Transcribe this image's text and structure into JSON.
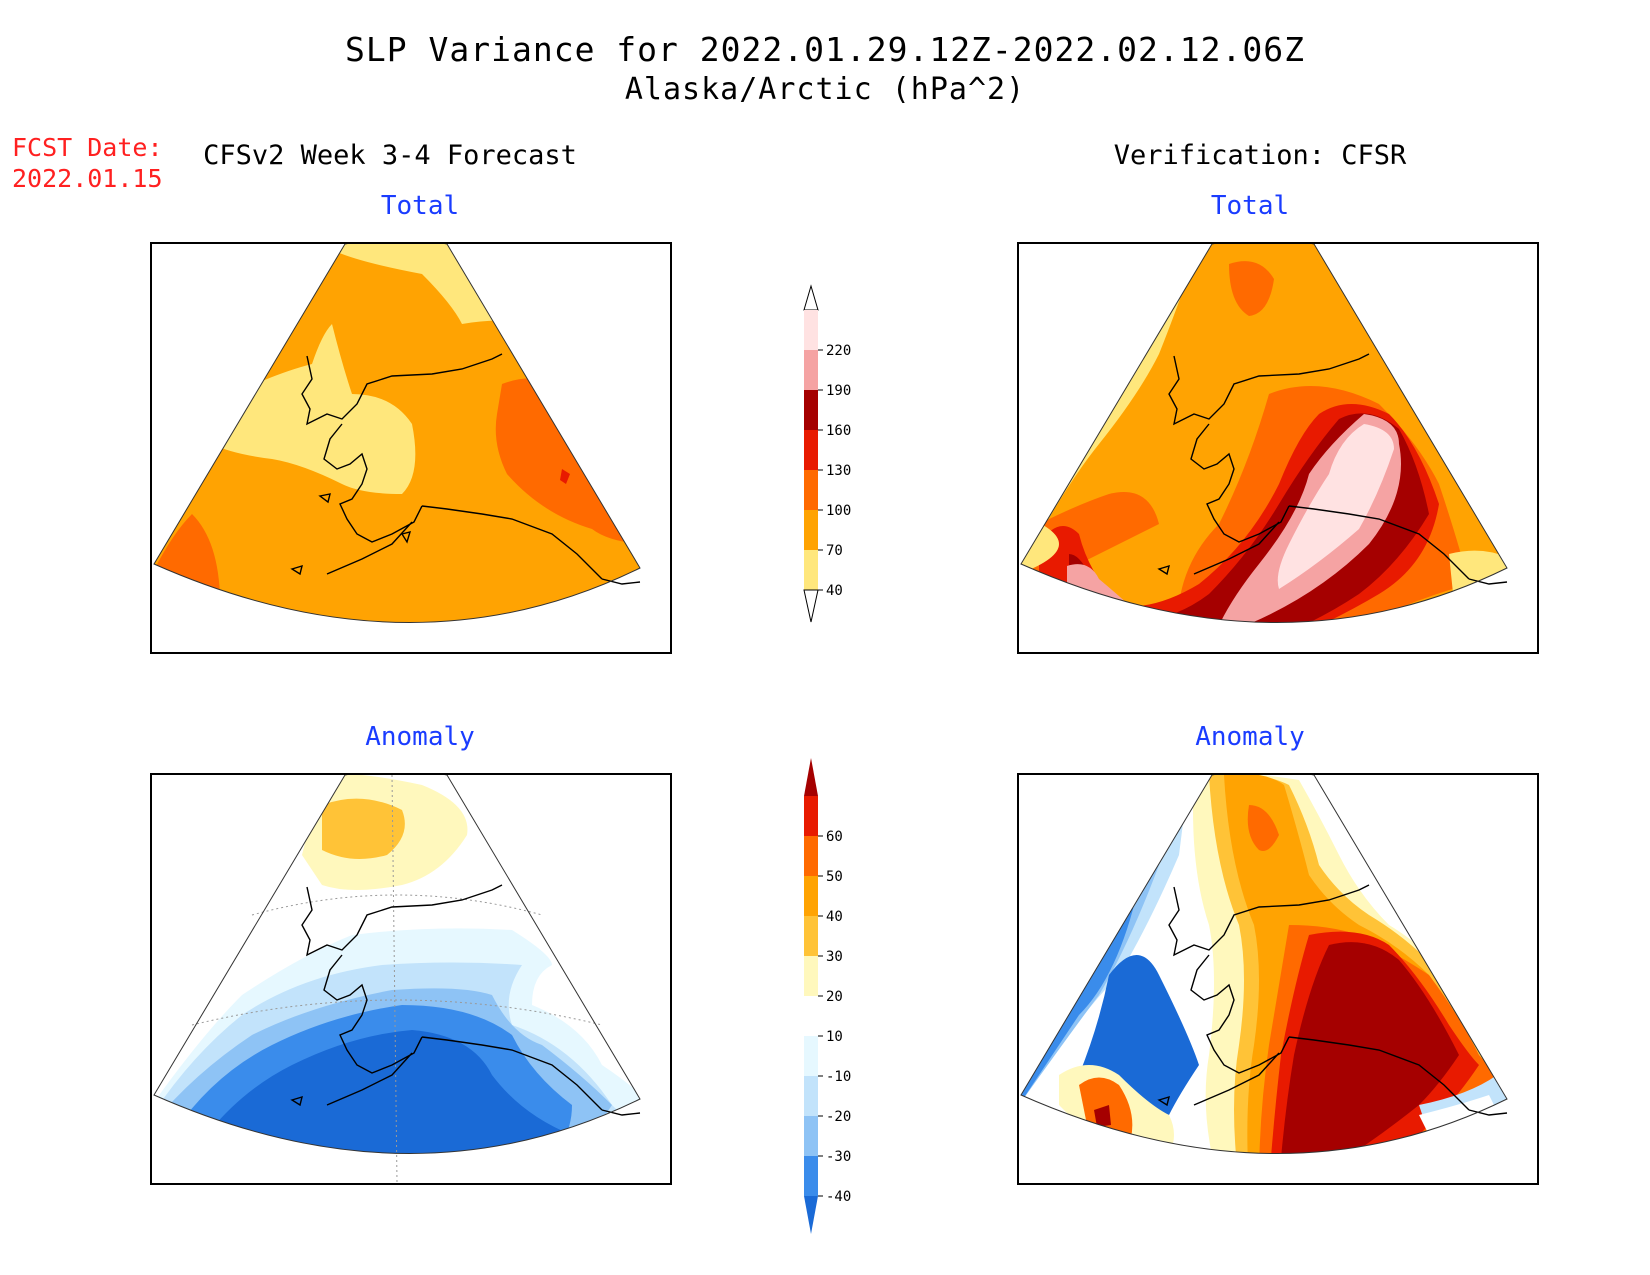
{
  "title": {
    "line1": "SLP Variance for 2022.01.29.12Z-2022.02.12.06Z",
    "line2": "Alaska/Arctic (hPa^2)"
  },
  "forecast_date": {
    "label": "FCST Date:",
    "value": "2022.01.15"
  },
  "columns": {
    "left": "CFSv2 Week 3-4 Forecast",
    "right": "Verification: CFSR"
  },
  "panels": {
    "forecast_total": "Total",
    "verification_total": "Total",
    "forecast_anomaly": "Anomaly",
    "verification_anomaly": "Anomaly"
  },
  "colorbars": {
    "total": {
      "labels": [
        "40",
        "70",
        "100",
        "130",
        "160",
        "190",
        "220"
      ],
      "colors": [
        "#ffe77c",
        "#ffa302",
        "#ff6a00",
        "#e81a00",
        "#a50000",
        "#f5a3a3",
        "#ffe2e2"
      ]
    },
    "anomaly": {
      "labels": [
        "-40",
        "-30",
        "-20",
        "-10",
        "10",
        "20",
        "30",
        "40",
        "50",
        "60"
      ],
      "colors": [
        "#1a6ad6",
        "#3a8ceb",
        "#8ec3f5",
        "#c2e3fb",
        "#e6f8ff",
        "#ffffff",
        "#fff8bd",
        "#ffc337",
        "#ffa302",
        "#ff6a00",
        "#e81a00",
        "#a50000"
      ]
    }
  }
}
